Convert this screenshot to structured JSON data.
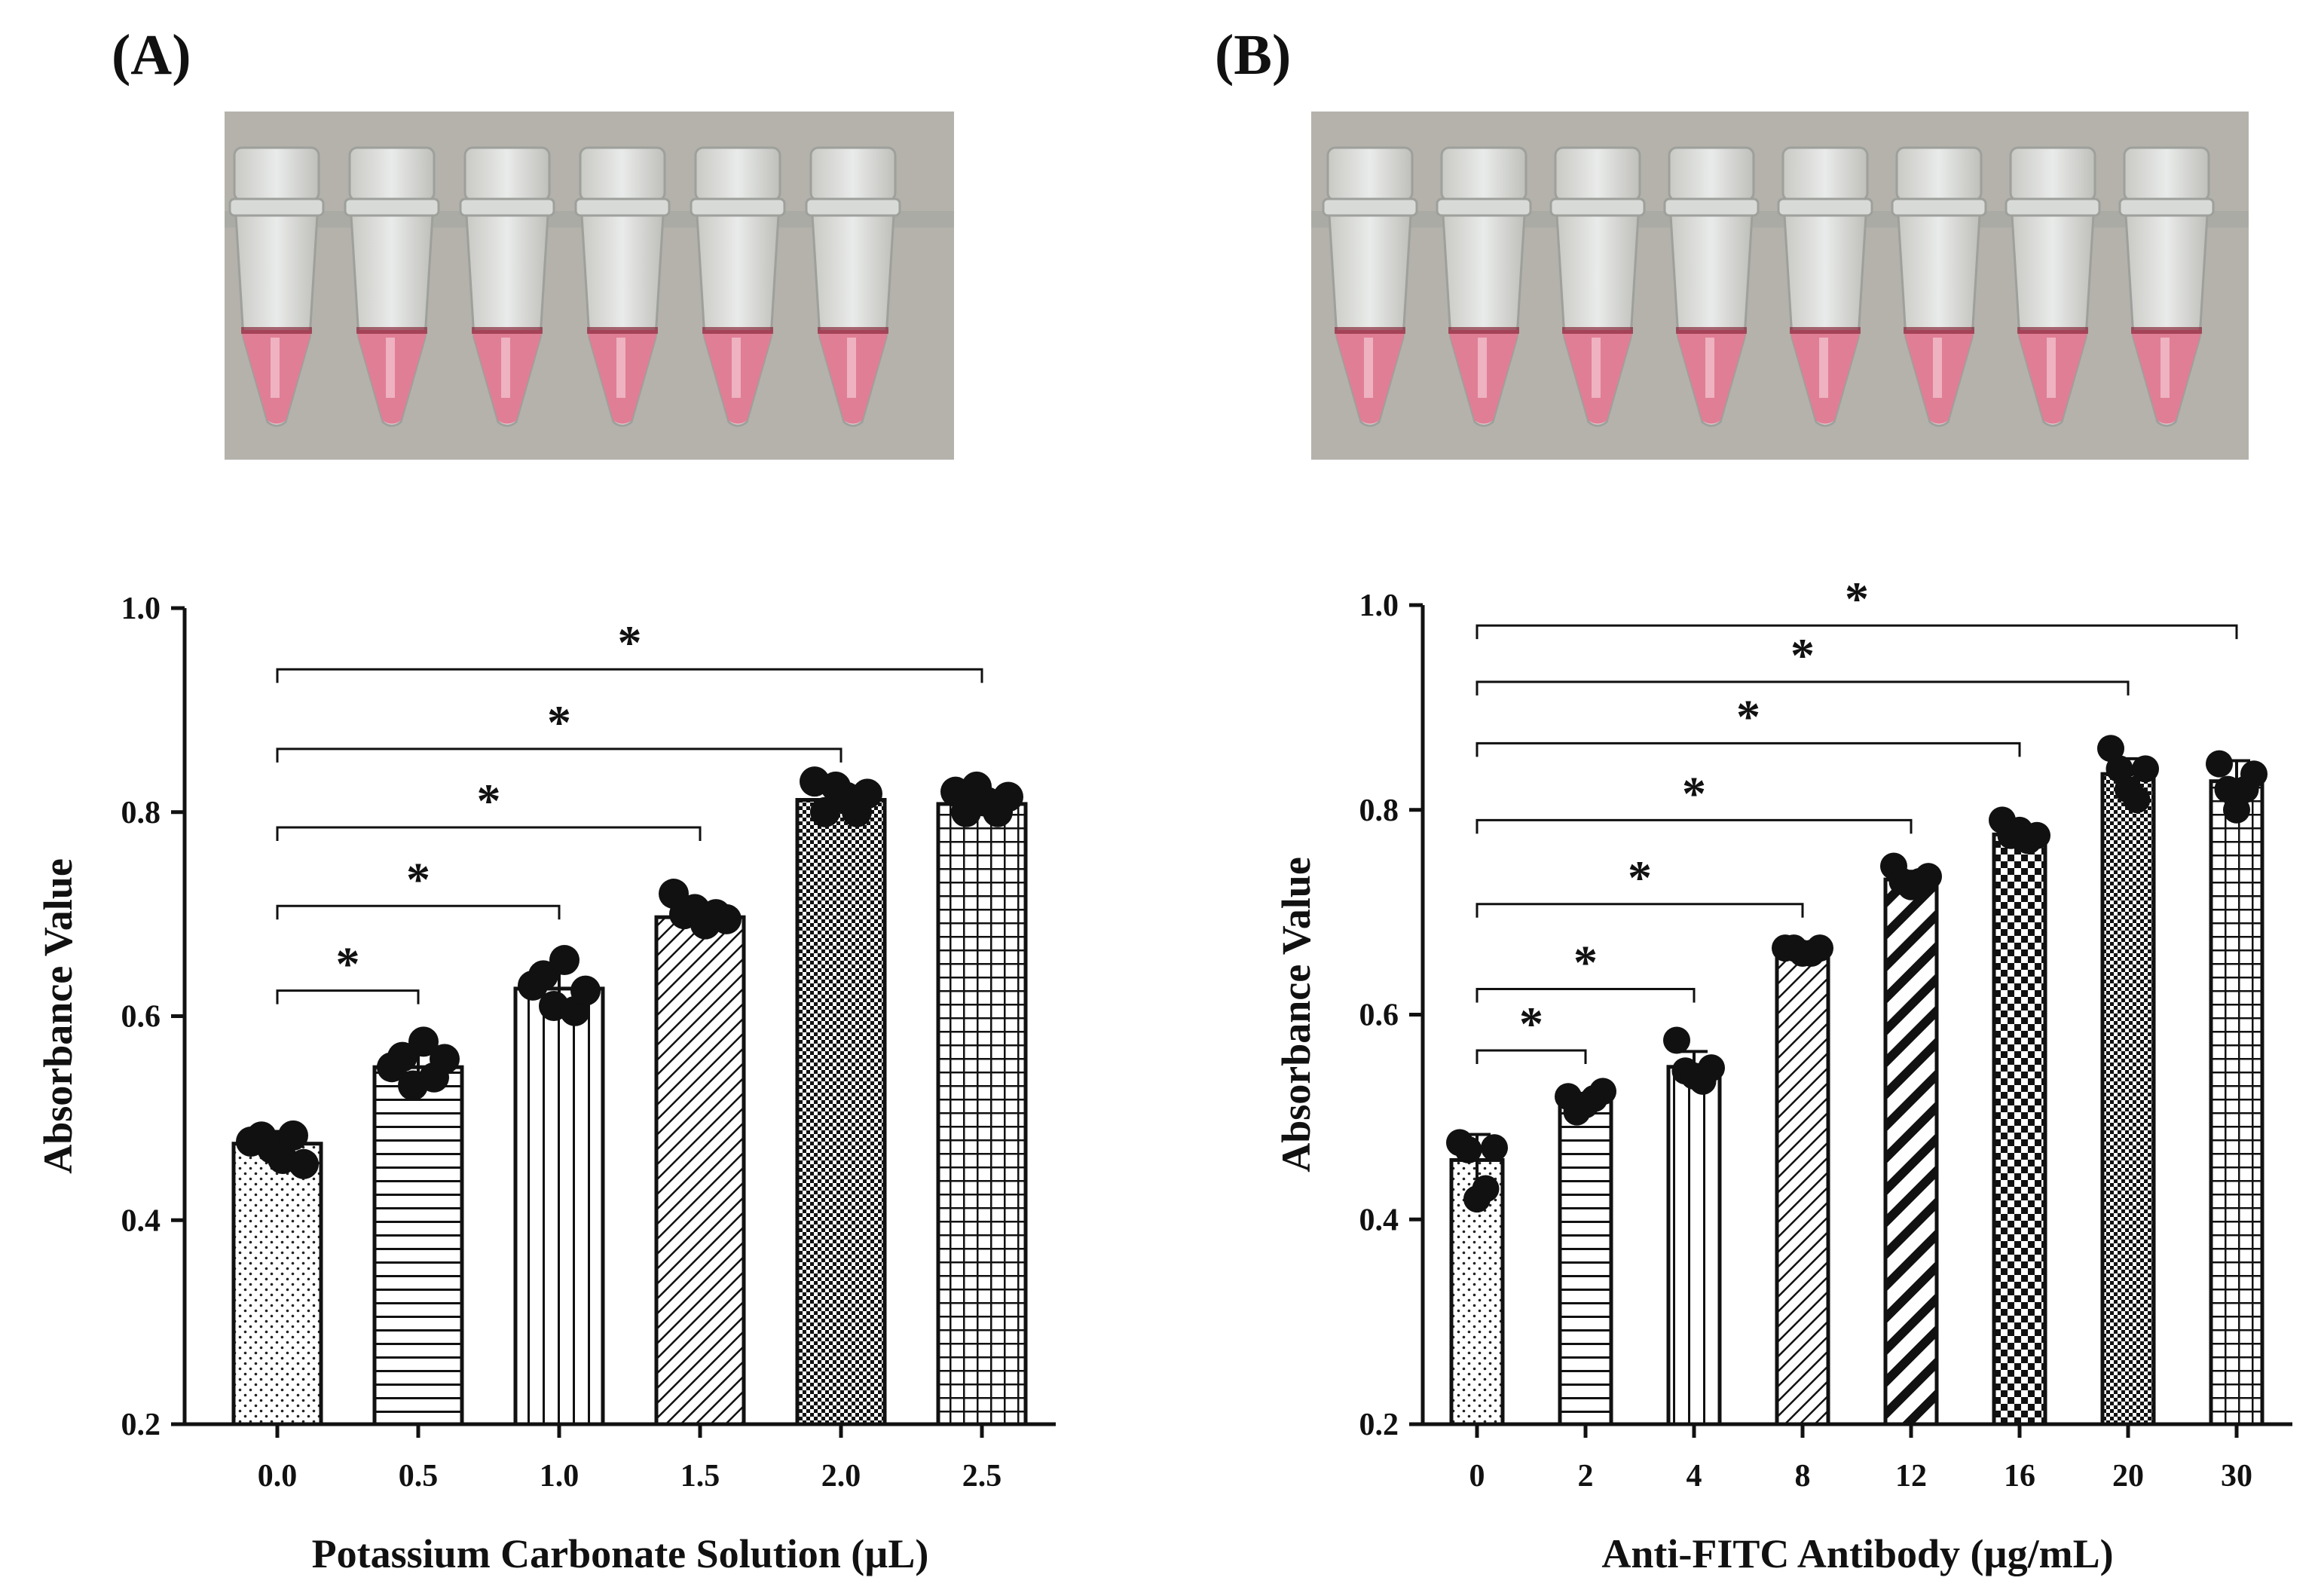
{
  "panels": [
    {
      "label": "(A)"
    },
    {
      "label": "(B)"
    }
  ],
  "photos": [
    {
      "tube_count": 6,
      "background": "#b4b2ab",
      "liquid": "#e07e95"
    },
    {
      "tube_count": 8,
      "background": "#b4b2ab",
      "liquid": "#e07e95"
    }
  ],
  "chart_data": [
    {
      "type": "bar",
      "categories": [
        "0.0",
        "0.5",
        "1.0",
        "1.5",
        "2.0",
        "2.5"
      ],
      "values": [
        0.475,
        0.55,
        0.627,
        0.697,
        0.812,
        0.808
      ],
      "errors": [
        0.012,
        0.015,
        0.02,
        0.008,
        0.012,
        0.012
      ],
      "points": [
        [
          0.477,
          0.482,
          0.47,
          0.46,
          0.483,
          0.455
        ],
        [
          0.55,
          0.56,
          0.532,
          0.575,
          0.54,
          0.558
        ],
        [
          0.63,
          0.64,
          0.61,
          0.655,
          0.605,
          0.625
        ],
        [
          0.72,
          0.7,
          0.705,
          0.69,
          0.7,
          0.695
        ],
        [
          0.83,
          0.8,
          0.825,
          0.815,
          0.8,
          0.818
        ],
        [
          0.82,
          0.8,
          0.825,
          0.81,
          0.8,
          0.815
        ]
      ],
      "patterns": [
        "dots",
        "hlines",
        "vlines",
        "diag",
        "checker-fine",
        "grid"
      ],
      "significance": [
        {
          "from": 0,
          "to": 1,
          "label": "*",
          "y": 0.625
        },
        {
          "from": 0,
          "to": 2,
          "label": "*",
          "y": 0.708
        },
        {
          "from": 0,
          "to": 3,
          "label": "*",
          "y": 0.785
        },
        {
          "from": 0,
          "to": 4,
          "label": "*",
          "y": 0.862
        },
        {
          "from": 0,
          "to": 5,
          "label": "*",
          "y": 0.94
        }
      ],
      "xlabel": "Potassium Carbonate Solution (µL)",
      "ylabel": "Absorbance Value",
      "ylim": [
        0.2,
        1.0
      ],
      "yticks": [
        "0.2",
        "0.4",
        "0.6",
        "0.8",
        "1.0"
      ]
    },
    {
      "type": "bar",
      "categories": [
        "0",
        "2",
        "4",
        "8",
        "12",
        "16",
        "20",
        "30"
      ],
      "values": [
        0.458,
        0.515,
        0.549,
        0.662,
        0.732,
        0.776,
        0.835,
        0.828
      ],
      "errors": [
        0.025,
        0.008,
        0.015,
        0.005,
        0.008,
        0.008,
        0.015,
        0.02
      ],
      "points": [
        [
          0.475,
          0.468,
          0.42,
          0.43,
          0.47
        ],
        [
          0.52,
          0.505,
          0.512,
          0.518,
          0.525
        ],
        [
          0.575,
          0.545,
          0.54,
          0.535,
          0.548
        ],
        [
          0.665,
          0.665,
          0.66,
          0.66,
          0.665
        ],
        [
          0.745,
          0.73,
          0.725,
          0.73,
          0.735
        ],
        [
          0.79,
          0.775,
          0.78,
          0.77,
          0.775
        ],
        [
          0.86,
          0.84,
          0.82,
          0.81,
          0.84
        ],
        [
          0.845,
          0.82,
          0.8,
          0.82,
          0.835
        ]
      ],
      "patterns": [
        "dots",
        "hlines",
        "vlines",
        "diag",
        "thick-diag",
        "checker-coarse",
        "checker-fine",
        "grid"
      ],
      "significance": [
        {
          "from": 0,
          "to": 1,
          "label": "*",
          "y": 0.565
        },
        {
          "from": 0,
          "to": 2,
          "label": "*",
          "y": 0.625
        },
        {
          "from": 0,
          "to": 3,
          "label": "*",
          "y": 0.708
        },
        {
          "from": 0,
          "to": 4,
          "label": "*",
          "y": 0.79
        },
        {
          "from": 0,
          "to": 5,
          "label": "*",
          "y": 0.865
        },
        {
          "from": 0,
          "to": 6,
          "label": "*",
          "y": 0.925
        },
        {
          "from": 0,
          "to": 7,
          "label": "*",
          "y": 0.98
        }
      ],
      "xlabel": "Anti-FITC Antibody (µg/mL)",
      "ylabel": "Absorbance Value",
      "ylim": [
        0.2,
        1.0
      ],
      "yticks": [
        "0.2",
        "0.4",
        "0.6",
        "0.8",
        "1.0"
      ]
    }
  ]
}
